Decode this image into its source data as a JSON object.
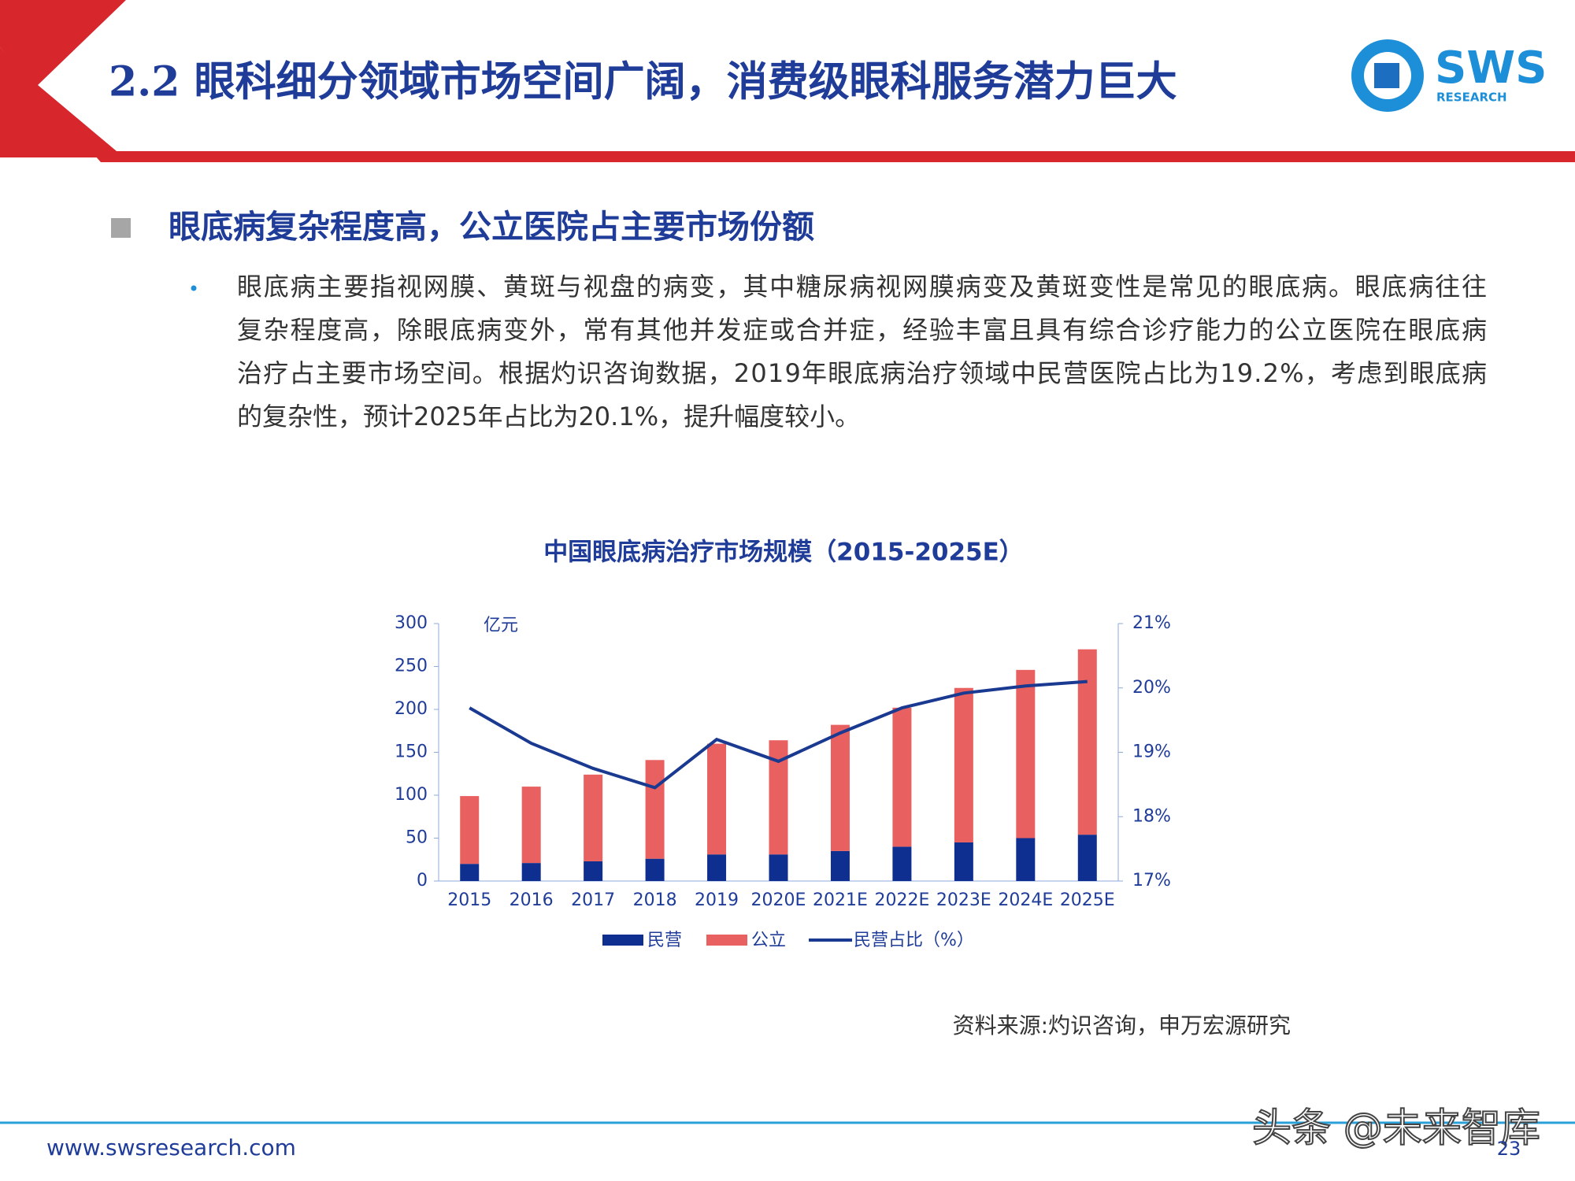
{
  "header": {
    "title": "2.2 眼科细分领域市场空间广阔，消费级眼科服务潜力巨大",
    "logo_text": "SWS",
    "logo_sub": "RESEARCH"
  },
  "section": {
    "heading": "眼底病复杂程度高，公立医院占主要市场份额",
    "lines": [
      "眼底病主要指视网膜、黄斑与视盘的病变，其中糖尿病视网膜病变及黄斑变性是常见的眼底病。眼底病往往",
      "复杂程度高，除眼底病变外，常有其他并发症或合并症，经验丰富且具有综合诊疗能力的公立医院在眼底病",
      "治疗占主要市场空间。根据灼识咨询数据，2019年眼底病治疗领域中民营医院占比为19.2%，考虑到眼底病",
      "的复杂性，预计2025年占比为20.1%，提升幅度较小。"
    ]
  },
  "chart_data": {
    "type": "bar",
    "stacked": true,
    "title": "中国眼底病治疗市场规模（2015-2025E）",
    "y_unit": "亿元",
    "categories": [
      "2015",
      "2016",
      "2017",
      "2018",
      "2019",
      "2020E",
      "2021E",
      "2022E",
      "2023E",
      "2024E",
      "2025E"
    ],
    "series": [
      {
        "name": "民营",
        "color": "#0e2f8f",
        "values": [
          20,
          21,
          23,
          26,
          31,
          31,
          35,
          40,
          45,
          50,
          54
        ]
      },
      {
        "name": "公立",
        "color": "#e8605f",
        "values": [
          79,
          89,
          101,
          115,
          129,
          133,
          147,
          162,
          180,
          196,
          216
        ]
      },
      {
        "name": "民营占比（%）",
        "type": "line",
        "axis": "y2",
        "color": "#1a3990",
        "values": [
          19.69,
          19.14,
          18.75,
          18.45,
          19.2,
          18.86,
          19.3,
          19.69,
          19.92,
          20.03,
          20.1
        ]
      }
    ],
    "ylim": [
      0,
      300
    ],
    "yticks": [
      0,
      50,
      100,
      150,
      200,
      250,
      300
    ],
    "y2lim": [
      17,
      21
    ],
    "y2ticks": [
      {
        "value": 17,
        "label": "17%"
      },
      {
        "value": 18,
        "label": "18%"
      },
      {
        "value": 19,
        "label": "19%"
      },
      {
        "value": 20,
        "label": "20%"
      },
      {
        "value": 21,
        "label": "21%"
      }
    ],
    "legend": "bottom",
    "source": "资料来源:灼识咨询，申万宏源研究"
  },
  "footer": {
    "url": "www.swsresearch.com",
    "page": "23",
    "watermark": "头条 @未来智库"
  }
}
